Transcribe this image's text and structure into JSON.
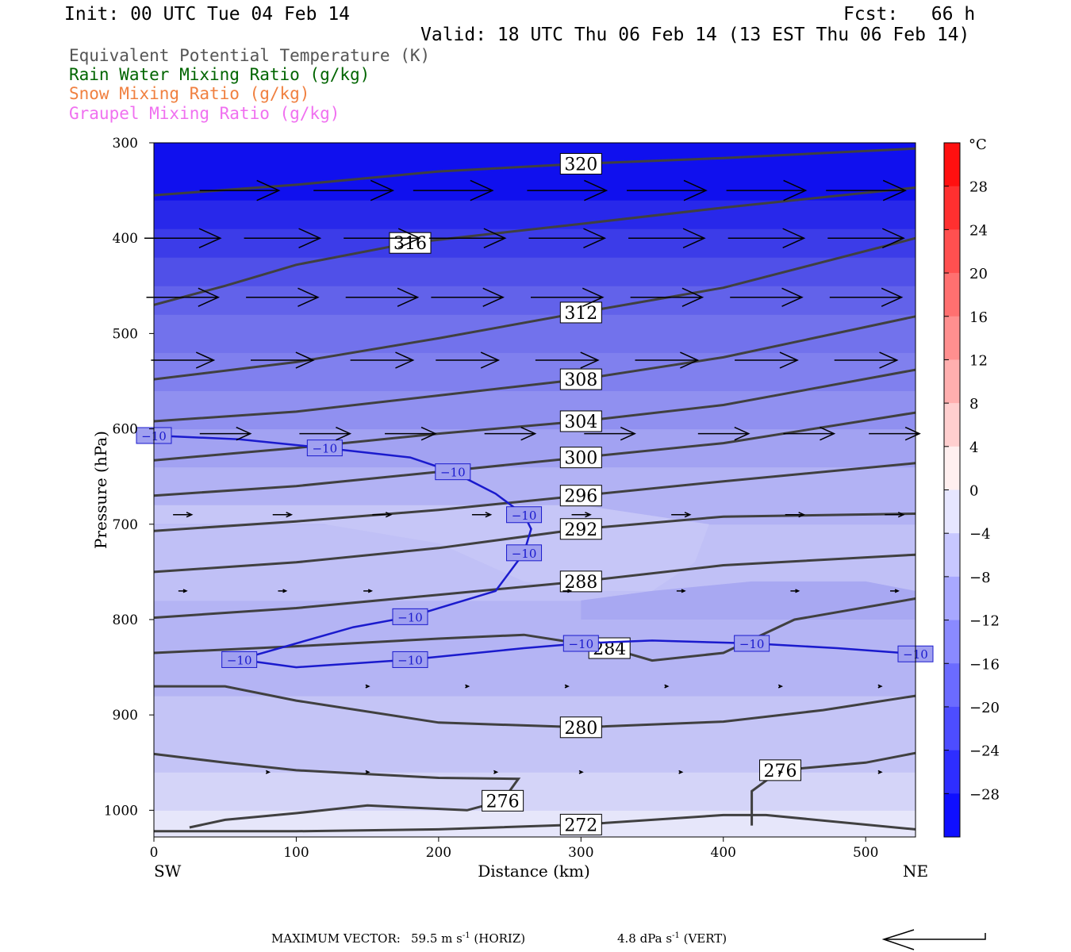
{
  "header": {
    "init": "Init: 00 UTC Tue 04 Feb 14",
    "fcst": "Fcst:   66 h",
    "valid": "Valid: 18 UTC Thu 06 Feb 14 (13 EST Thu 06 Feb 14)"
  },
  "legend": [
    {
      "label": "Equivalent Potential Temperature (K)",
      "color": "#555555"
    },
    {
      "label": "Rain Water Mixing Ratio (g/kg)",
      "color": "#006400"
    },
    {
      "label": "Snow Mixing Ratio (g/kg)",
      "color": "#f08040"
    },
    {
      "label": "Graupel Mixing Ratio (g/kg)",
      "color": "#f070f0"
    }
  ],
  "chart_data": {
    "type": "heatmap",
    "xlabel": "Distance (km)",
    "ylabel": "Pressure (hPa)",
    "xlim": [
      0,
      535
    ],
    "ylim": [
      1028,
      300
    ],
    "x_ticks": [
      0,
      100,
      200,
      300,
      400,
      500
    ],
    "y_ticks": [
      300,
      400,
      500,
      600,
      700,
      800,
      900,
      1000
    ],
    "x_end_labels": {
      "left": "SW",
      "right": "NE"
    },
    "colorbar": {
      "unit": "°C",
      "tick_labels": [
        "28",
        "24",
        "20",
        "16",
        "12",
        "8",
        "4",
        "0",
        "−4",
        "−8",
        "−12",
        "−16",
        "−20",
        "−24",
        "−28"
      ],
      "min": -32,
      "max": 32,
      "step": 4
    },
    "theta_e_contours": [
      {
        "label": "320",
        "points": [
          [
            0,
            355
          ],
          [
            100,
            344
          ],
          [
            200,
            330
          ],
          [
            300,
            322
          ],
          [
            400,
            316
          ],
          [
            535,
            306
          ]
        ]
      },
      {
        "label": "316",
        "points": [
          [
            0,
            470
          ],
          [
            50,
            450
          ],
          [
            100,
            428
          ],
          [
            180,
            405
          ],
          [
            300,
            385
          ],
          [
            400,
            368
          ],
          [
            535,
            347
          ]
        ]
      },
      {
        "label": "312",
        "points": [
          [
            0,
            548
          ],
          [
            100,
            530
          ],
          [
            200,
            505
          ],
          [
            300,
            478
          ],
          [
            400,
            452
          ],
          [
            535,
            400
          ]
        ]
      },
      {
        "label": "308",
        "points": [
          [
            0,
            592
          ],
          [
            100,
            582
          ],
          [
            200,
            565
          ],
          [
            300,
            548
          ],
          [
            400,
            525
          ],
          [
            535,
            482
          ]
        ]
      },
      {
        "label": "304",
        "points": [
          [
            0,
            633
          ],
          [
            100,
            620
          ],
          [
            200,
            605
          ],
          [
            300,
            592
          ],
          [
            400,
            575
          ],
          [
            535,
            538
          ]
        ]
      },
      {
        "label": "300",
        "points": [
          [
            0,
            670
          ],
          [
            100,
            660
          ],
          [
            200,
            645
          ],
          [
            300,
            630
          ],
          [
            400,
            615
          ],
          [
            535,
            583
          ]
        ]
      },
      {
        "label": "296",
        "points": [
          [
            0,
            707
          ],
          [
            100,
            697
          ],
          [
            200,
            685
          ],
          [
            300,
            670
          ],
          [
            400,
            655
          ],
          [
            535,
            636
          ]
        ]
      },
      {
        "label": "292",
        "points": [
          [
            0,
            750
          ],
          [
            100,
            740
          ],
          [
            200,
            725
          ],
          [
            300,
            705
          ],
          [
            400,
            692
          ],
          [
            535,
            689
          ]
        ]
      },
      {
        "label": "288",
        "points": [
          [
            0,
            798
          ],
          [
            100,
            788
          ],
          [
            200,
            774
          ],
          [
            300,
            760
          ],
          [
            400,
            743
          ],
          [
            535,
            732
          ]
        ]
      },
      {
        "label": "284",
        "points": [
          [
            0,
            835
          ],
          [
            100,
            828
          ],
          [
            200,
            820
          ],
          [
            260,
            816
          ],
          [
            320,
            830
          ],
          [
            350,
            843
          ],
          [
            400,
            835
          ],
          [
            450,
            800
          ],
          [
            535,
            778
          ]
        ]
      },
      {
        "label": "280",
        "points": [
          [
            0,
            870
          ],
          [
            50,
            870
          ],
          [
            100,
            885
          ],
          [
            200,
            908
          ],
          [
            300,
            913
          ],
          [
            400,
            907
          ],
          [
            470,
            895
          ],
          [
            535,
            880
          ]
        ]
      },
      {
        "label": "276",
        "points": [
          [
            0,
            941
          ],
          [
            50,
            950
          ],
          [
            100,
            958
          ],
          [
            150,
            962
          ],
          [
            200,
            966
          ],
          [
            256,
            967
          ],
          [
            245,
            990
          ],
          [
            220,
            1000
          ],
          [
            150,
            995
          ],
          [
            100,
            1003
          ],
          [
            50,
            1010
          ],
          [
            25,
            1018
          ]
        ]
      },
      {
        "label": "276",
        "points": [
          [
            420,
            1016
          ],
          [
            420,
            980
          ],
          [
            440,
            958
          ],
          [
            500,
            950
          ],
          [
            535,
            940
          ]
        ]
      },
      {
        "label": "272",
        "points": [
          [
            0,
            1022
          ],
          [
            100,
            1022
          ],
          [
            200,
            1020
          ],
          [
            300,
            1015
          ],
          [
            400,
            1005
          ],
          [
            430,
            1005
          ],
          [
            535,
            1020
          ]
        ]
      }
    ],
    "temp_minus10_isotherm": [
      {
        "label": "−10",
        "points": [
          [
            0,
            607
          ],
          [
            60,
            611
          ],
          [
            120,
            620
          ],
          [
            180,
            630
          ],
          [
            210,
            645
          ],
          [
            240,
            668
          ],
          [
            260,
            690
          ],
          [
            265,
            705
          ],
          [
            260,
            730
          ],
          [
            240,
            770
          ],
          [
            180,
            797
          ],
          [
            140,
            808
          ],
          [
            60,
            842
          ],
          [
            100,
            850
          ],
          [
            180,
            842
          ],
          [
            260,
            830
          ],
          [
            300,
            825
          ],
          [
            350,
            822
          ],
          [
            420,
            825
          ],
          [
            480,
            830
          ],
          [
            535,
            836
          ]
        ]
      }
    ],
    "vectors": [
      {
        "p": 350,
        "x": [
          60,
          140,
          210,
          290,
          360,
          430,
          500
        ],
        "u": 59.5
      },
      {
        "p": 400,
        "x": [
          20,
          90,
          160,
          220,
          290,
          360,
          430,
          500
        ],
        "u": 57
      },
      {
        "p": 462,
        "x": [
          20,
          90,
          160,
          220,
          290,
          360,
          430,
          500
        ],
        "u": 54
      },
      {
        "p": 528,
        "x": [
          20,
          90,
          160,
          220,
          290,
          360,
          430,
          500
        ],
        "u": 47
      },
      {
        "p": 605,
        "x": [
          50,
          120,
          180,
          250,
          320,
          400,
          460,
          520
        ],
        "u": 38
      },
      {
        "p": 690,
        "x": [
          20,
          90,
          160,
          230,
          300,
          370,
          450,
          520
        ],
        "u": 14
      },
      {
        "p": 770,
        "x": [
          20,
          90,
          150,
          290,
          370,
          450,
          520
        ],
        "u": 6
      },
      {
        "p": 870,
        "x": [
          150,
          220,
          290,
          360,
          440,
          510
        ],
        "u": 2
      },
      {
        "p": 960,
        "x": [
          80,
          150,
          240,
          300,
          370,
          440,
          510
        ],
        "u": 2
      }
    ]
  },
  "footer": {
    "max_vector_label": "MAXIMUM VECTOR:",
    "horiz_value": "59.5 m s",
    "horiz_unit": "(HORIZ)",
    "vert_value": "4.8 dPa s",
    "vert_unit": "(VERT)",
    "superscript": "-1"
  }
}
